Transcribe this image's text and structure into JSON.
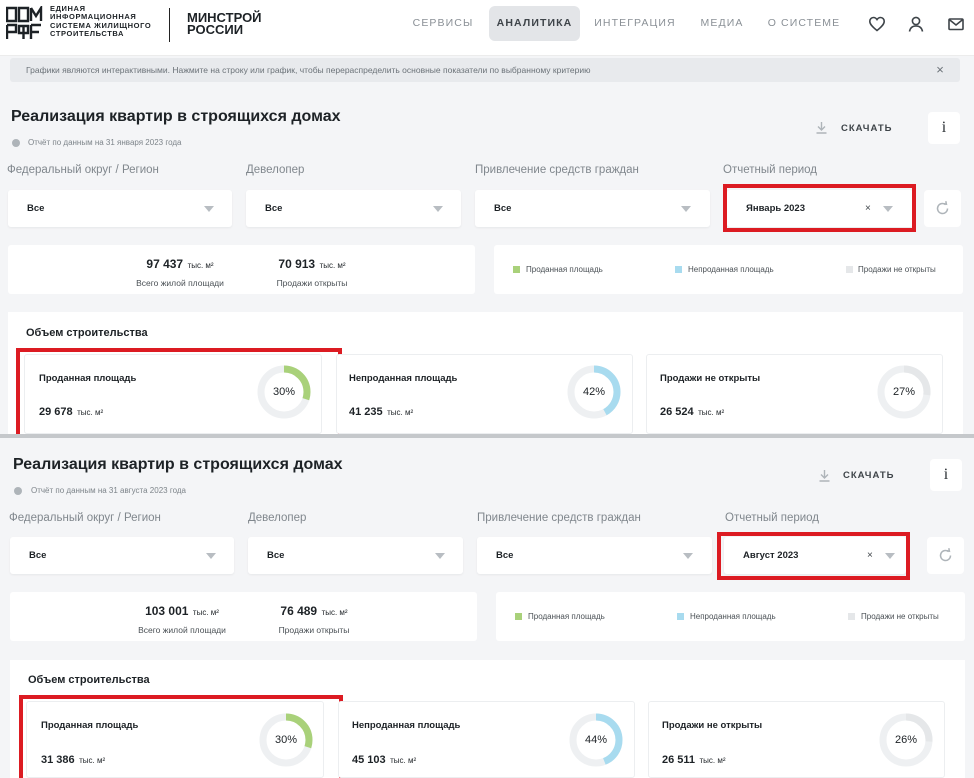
{
  "colors": {
    "sold": "#a9d17a",
    "unsold": "#a8dbef",
    "not_open": "#e5e7e9",
    "highlight": "#dc1b22"
  },
  "header": {
    "logo_icon": "domrf-logo-icon",
    "logo_lines": [
      "ЕДИНАЯ",
      "ИНФОРМАЦИОННАЯ",
      "СИСТЕМА ЖИЛИЩНОГО",
      "СТРОИТЕЛЬСТВА"
    ],
    "ministry_lines": [
      "МИНСТРОЙ",
      "РОССИИ"
    ],
    "nav": [
      "СЕРВИСЫ",
      "АНАЛИТИКА",
      "ИНТЕГРАЦИЯ",
      "МЕДИА",
      "О СИСТЕМЕ"
    ],
    "active_nav": "АНАЛИТИКА",
    "icons": [
      "heart-icon",
      "user-icon",
      "mail-icon"
    ]
  },
  "notice": {
    "text": "Графики являются интерактивными. Нажмите на строку или график, чтобы перераспределить основные показатели по выбранному критерию",
    "close": "×"
  },
  "top": {
    "title": "Реализация квартир в строящихся домах",
    "date": "Отчёт по данным на 31 января 2023 года",
    "download": "СКАЧАТЬ",
    "info": "i",
    "filters": {
      "region_label": "Федеральный округ / Регион",
      "region_value": "Все",
      "developer_label": "Девелопер",
      "developer_value": "Все",
      "funds_label": "Привлечение средств граждан",
      "funds_value": "Все",
      "period_label": "Отчетный период",
      "period_value": "Январь 2023",
      "clear": "×"
    },
    "stats": {
      "total_value": "97 437",
      "total_unit": "тыс. м²",
      "total_label": "Всего жилой площади",
      "open_value": "70 913",
      "open_unit": "тыс. м²",
      "open_label": "Продажи открыты"
    },
    "legend": [
      "Проданная площадь",
      "Непроданная площадь",
      "Продажи не открыты"
    ],
    "volume": {
      "title": "Объем строительства",
      "cards": [
        {
          "title": "Проданная площадь",
          "value": "29 678",
          "unit": "тыс. м²",
          "percent": 30,
          "percent_label": "30%"
        },
        {
          "title": "Непроданная площадь",
          "value": "41 235",
          "unit": "тыс. м²",
          "percent": 42,
          "percent_label": "42%"
        },
        {
          "title": "Продажи не открыты",
          "value": "26 524",
          "unit": "тыс. м²",
          "percent": 27,
          "percent_label": "27%"
        }
      ]
    }
  },
  "bottom": {
    "title": "Реализация квартир в строящихся домах",
    "date": "Отчёт по данным на 31 августа 2023 года",
    "download": "СКАЧАТЬ",
    "info": "i",
    "filters": {
      "region_label": "Федеральный округ / Регион",
      "region_value": "Все",
      "developer_label": "Девелопер",
      "developer_value": "Все",
      "funds_label": "Привлечение средств граждан",
      "funds_value": "Все",
      "period_label": "Отчетный период",
      "period_value": "Август 2023",
      "clear": "×"
    },
    "stats": {
      "total_value": "103 001",
      "total_unit": "тыс. м²",
      "total_label": "Всего жилой площади",
      "open_value": "76 489",
      "open_unit": "тыс. м²",
      "open_label": "Продажи открыты"
    },
    "legend": [
      "Проданная площадь",
      "Непроданная площадь",
      "Продажи не открыты"
    ],
    "volume": {
      "title": "Объем строительства",
      "cards": [
        {
          "title": "Проданная площадь",
          "value": "31 386",
          "unit": "тыс. м²",
          "percent": 30,
          "percent_label": "30%"
        },
        {
          "title": "Непроданная площадь",
          "value": "45 103",
          "unit": "тыс. м²",
          "percent": 44,
          "percent_label": "44%"
        },
        {
          "title": "Продажи не открыты",
          "value": "26 511",
          "unit": "тыс. м²",
          "percent": 26,
          "percent_label": "26%"
        }
      ]
    }
  }
}
